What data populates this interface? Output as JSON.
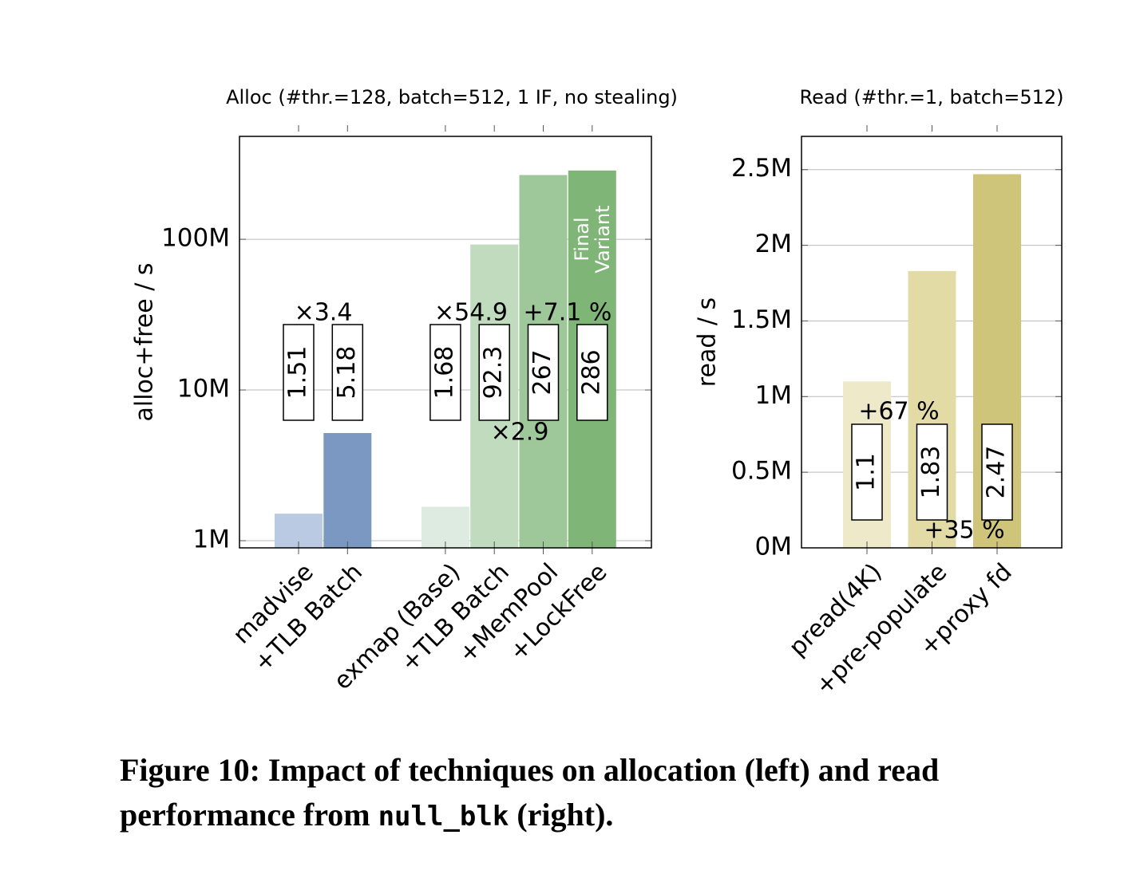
{
  "chart_data": [
    {
      "type": "bar",
      "title": "Alloc (#thr.=128, batch=512, 1 IF, no stealing)",
      "ylabel": "alloc+free / s",
      "log_scale": true,
      "categories": [
        "madvise",
        "+TLB Batch",
        null,
        "exmap (Base)",
        "+TLB Batch",
        "+MemPool",
        "+LockFree"
      ],
      "values": [
        1510000,
        5180000,
        null,
        1680000,
        92300000,
        267000000,
        286000000
      ],
      "value_labels": [
        "1.51",
        "5.18",
        null,
        "1.68",
        "92.3",
        "267",
        "286"
      ],
      "colors": [
        "#b9cae2",
        "#7b98c2",
        null,
        "#deebe0",
        "#c0dbbd",
        "#9ec79a",
        "#7fb576"
      ],
      "ylim": [
        896000,
        482000000
      ],
      "yticks": [
        {
          "value": 1000000,
          "label": "1M"
        },
        {
          "value": 10000000,
          "label": "10M"
        },
        {
          "value": 100000000,
          "label": "100M"
        }
      ],
      "grid": true,
      "annotations": [
        "×3.4",
        "×54.9",
        "+7.1 %",
        "×2.9"
      ],
      "bar_note": [
        "Final",
        "Variant"
      ]
    },
    {
      "type": "bar",
      "title": "Read (#thr.=1, batch=512)",
      "ylabel": "read / s",
      "log_scale": false,
      "categories": [
        "pread(4K)",
        "+pre-populate",
        "+proxy fd"
      ],
      "values": [
        1100000,
        1830000,
        2470000
      ],
      "value_labels": [
        "1.1",
        "1.83",
        "2.47"
      ],
      "colors": [
        "#ede9c9",
        "#e2dba6",
        "#cfc57a"
      ],
      "ylim": [
        0,
        2720000
      ],
      "yticks": [
        {
          "value": 0,
          "label": "0M"
        },
        {
          "value": 500000,
          "label": "0.5M"
        },
        {
          "value": 1000000,
          "label": "1M"
        },
        {
          "value": 1500000,
          "label": "1.5M"
        },
        {
          "value": 2000000,
          "label": "2M"
        },
        {
          "value": 2500000,
          "label": "2.5M"
        }
      ],
      "grid": true,
      "annotations": [
        "+67 %",
        "+35 %"
      ]
    }
  ],
  "caption": {
    "parts": [
      "Figure 10: Impact of techniques on allocation (left) and read performance from ",
      "null_blk",
      " (right)."
    ]
  }
}
